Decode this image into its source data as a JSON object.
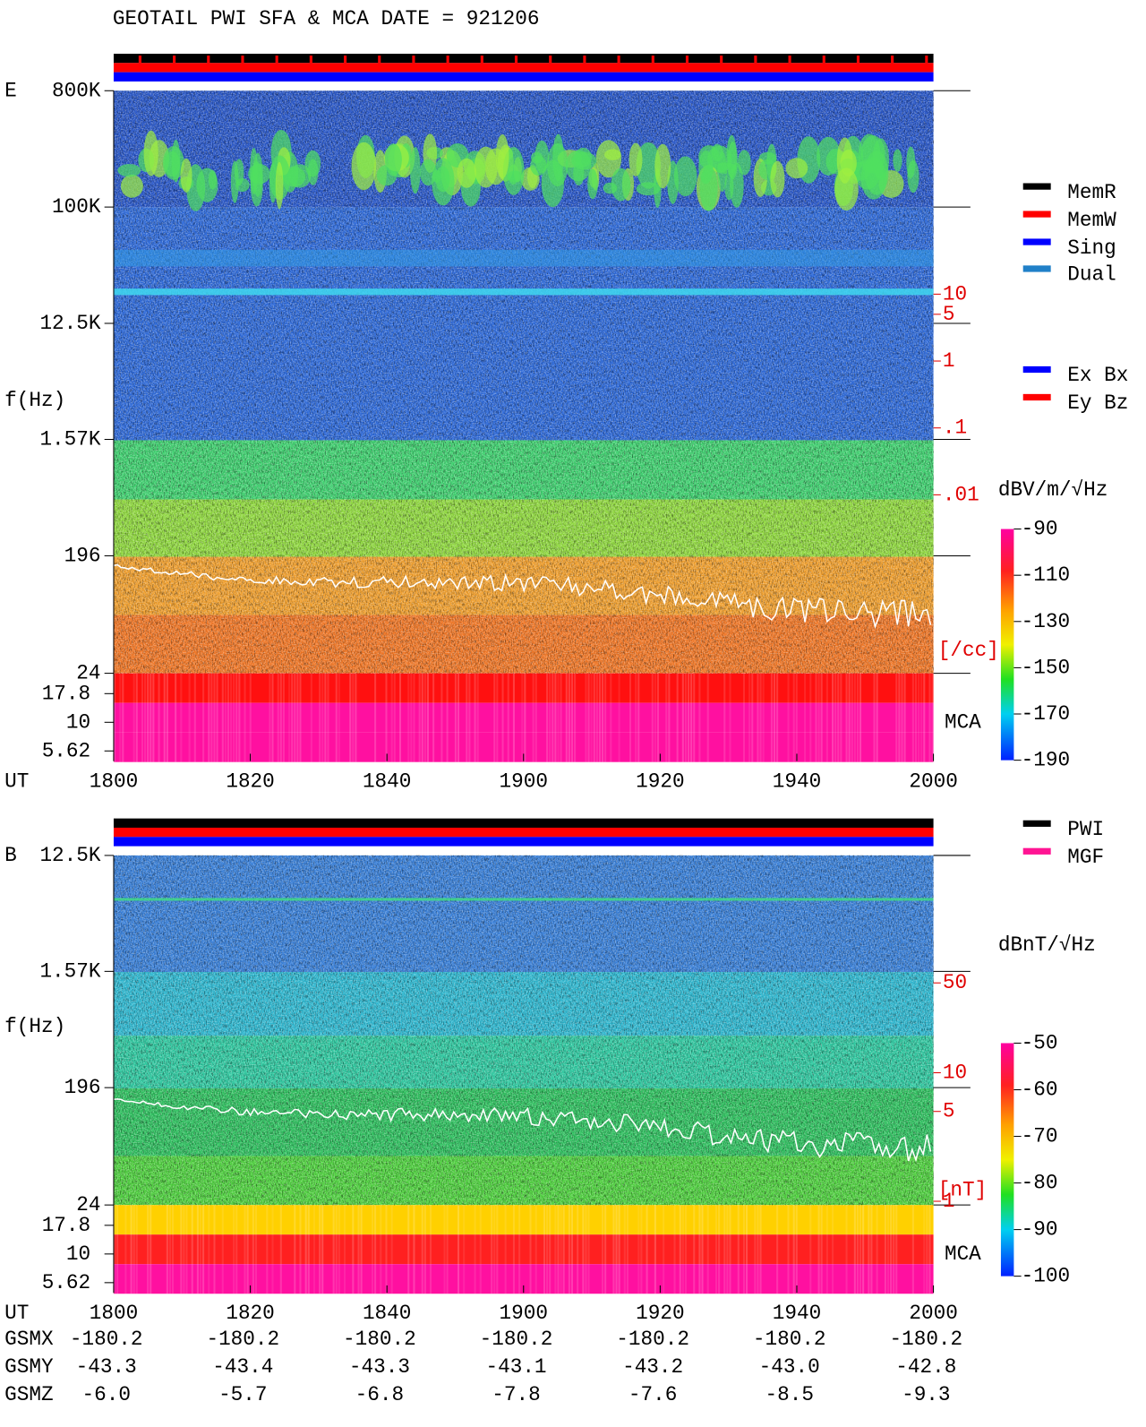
{
  "title": "GEOTAIL  PWI SFA & MCA   DATE = 921206",
  "chart_data": [
    {
      "type": "spectrogram",
      "panel_label": "E",
      "y_label": "f(Hz)",
      "x_label": "UT",
      "yscale": "log",
      "ylim": [
        800000,
        24
      ],
      "yticks": [
        {
          "value": 800000,
          "label": "800K"
        },
        {
          "value": 100000,
          "label": "100K"
        },
        {
          "value": 12500,
          "label": "12.5K"
        },
        {
          "value": 1570,
          "label": "1.57K"
        },
        196,
        24
      ],
      "mca_label": "MCA",
      "mca_ticks": [
        17.8,
        10,
        5.62
      ],
      "xticks": [
        "1800",
        "1820",
        "1840",
        "1900",
        "1920",
        "1940",
        "2000"
      ],
      "density_label": "[/cc]",
      "density_lim": [
        10,
        0.01
      ],
      "density_ticks": [
        10,
        5,
        1,
        {
          "value": 0.1,
          "label": ".1"
        },
        {
          "value": 0.01,
          "label": ".01"
        }
      ],
      "colorbar_label": "dBV/m/√Hz",
      "clim": [
        -90,
        -190
      ],
      "cticks": [
        -90,
        -110,
        -130,
        -150,
        -170,
        -190
      ],
      "legends": [
        [
          {
            "name": "MemR",
            "color": "#000000"
          },
          {
            "name": "MemW",
            "color": "#ff0000"
          },
          {
            "name": "Sing",
            "color": "#0000ff"
          },
          {
            "name": "Dual",
            "color": "#2080c8"
          }
        ],
        [
          {
            "name": "Ex Bx",
            "color": "#0000ff"
          },
          {
            "name": "Ey Bz",
            "color": "#ff0000"
          }
        ]
      ]
    },
    {
      "type": "spectrogram",
      "panel_label": "B",
      "y_label": "f(Hz)",
      "x_label": "UT",
      "yscale": "log",
      "ylim": [
        12500,
        24
      ],
      "yticks": [
        {
          "value": 12500,
          "label": "12.5K"
        },
        {
          "value": 1570,
          "label": "1.57K"
        },
        196,
        24
      ],
      "mca_label": "MCA",
      "mca_ticks": [
        17.8,
        10,
        5.62
      ],
      "xticks": [
        "1800",
        "1820",
        "1840",
        "1900",
        "1920",
        "1940",
        "2000"
      ],
      "density_label": "[nT]",
      "density_lim": [
        100,
        1
      ],
      "density_ticks": [
        50,
        10,
        5,
        1
      ],
      "colorbar_label": "dBnT/√Hz",
      "clim": [
        -50,
        -100
      ],
      "cticks": [
        -50,
        -60,
        -70,
        -80,
        -90,
        -100
      ],
      "legends": [
        [
          {
            "name": "PWI",
            "color": "#000000"
          },
          {
            "name": "MGF",
            "color": "#ff1493"
          }
        ]
      ]
    }
  ],
  "orbit": {
    "rows": [
      {
        "label": "GSMX",
        "values": [
          "-180.2",
          "-180.2",
          "-180.2",
          "-180.2",
          "-180.2",
          "-180.2",
          "-180.2"
        ]
      },
      {
        "label": "GSMY",
        "values": [
          "-43.3",
          "-43.4",
          "-43.3",
          "-43.1",
          "-43.2",
          "-43.0",
          "-42.8"
        ]
      },
      {
        "label": "GSMZ",
        "values": [
          "-6.0",
          "-5.7",
          "-6.8",
          "-7.8",
          "-7.6",
          "-8.5",
          "-9.3"
        ]
      }
    ]
  }
}
